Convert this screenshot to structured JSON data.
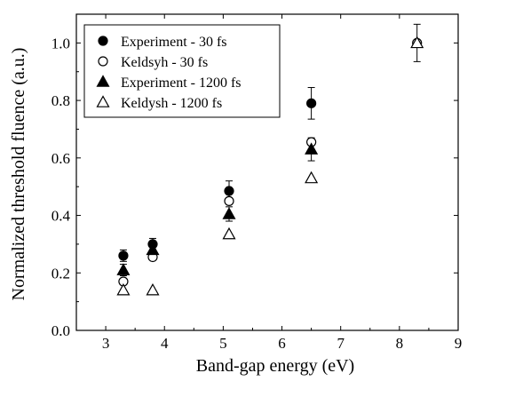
{
  "chart_data": {
    "type": "scatter",
    "title": "",
    "xlabel": "Band-gap energy (eV)",
    "ylabel": "Normalized threshold fluence (a.u.)",
    "xlim": [
      2.5,
      9
    ],
    "ylim": [
      0.0,
      1.1
    ],
    "xticks": [
      3,
      4,
      5,
      6,
      7,
      8,
      9
    ],
    "yticks": [
      0.0,
      0.2,
      0.4,
      0.6,
      0.8,
      1.0
    ],
    "ytick_labels": [
      "0.0",
      "0.2",
      "0.4",
      "0.6",
      "0.8",
      "1.0"
    ],
    "grid": false,
    "legend_position": "top-left",
    "series": [
      {
        "name": "Experiment - 30 fs",
        "marker": "circle-filled",
        "x": [
          3.3,
          3.8,
          5.1,
          6.5
        ],
        "y": [
          0.26,
          0.3,
          0.485,
          0.79
        ],
        "yerr": [
          0.02,
          0.02,
          0.035,
          0.055
        ]
      },
      {
        "name": "Keldsyh - 30 fs",
        "marker": "circle-open",
        "x": [
          3.3,
          3.8,
          5.1,
          6.5,
          8.3
        ],
        "y": [
          0.17,
          0.255,
          0.45,
          0.655,
          1.0
        ],
        "yerr": [
          0,
          0,
          0,
          0,
          0
        ]
      },
      {
        "name": "Experiment - 1200 fs",
        "marker": "triangle-filled",
        "x": [
          3.3,
          3.8,
          5.1,
          6.5
        ],
        "y": [
          0.21,
          0.28,
          0.405,
          0.63
        ],
        "yerr": [
          0.02,
          0.02,
          0.025,
          0.04
        ]
      },
      {
        "name": "Keldysh - 1200 fs",
        "marker": "triangle-open",
        "x": [
          3.3,
          3.8,
          5.1,
          6.5,
          8.3
        ],
        "y": [
          0.14,
          0.14,
          0.335,
          0.53,
          1.0
        ],
        "yerr": [
          0,
          0,
          0,
          0,
          0.065
        ]
      }
    ]
  }
}
